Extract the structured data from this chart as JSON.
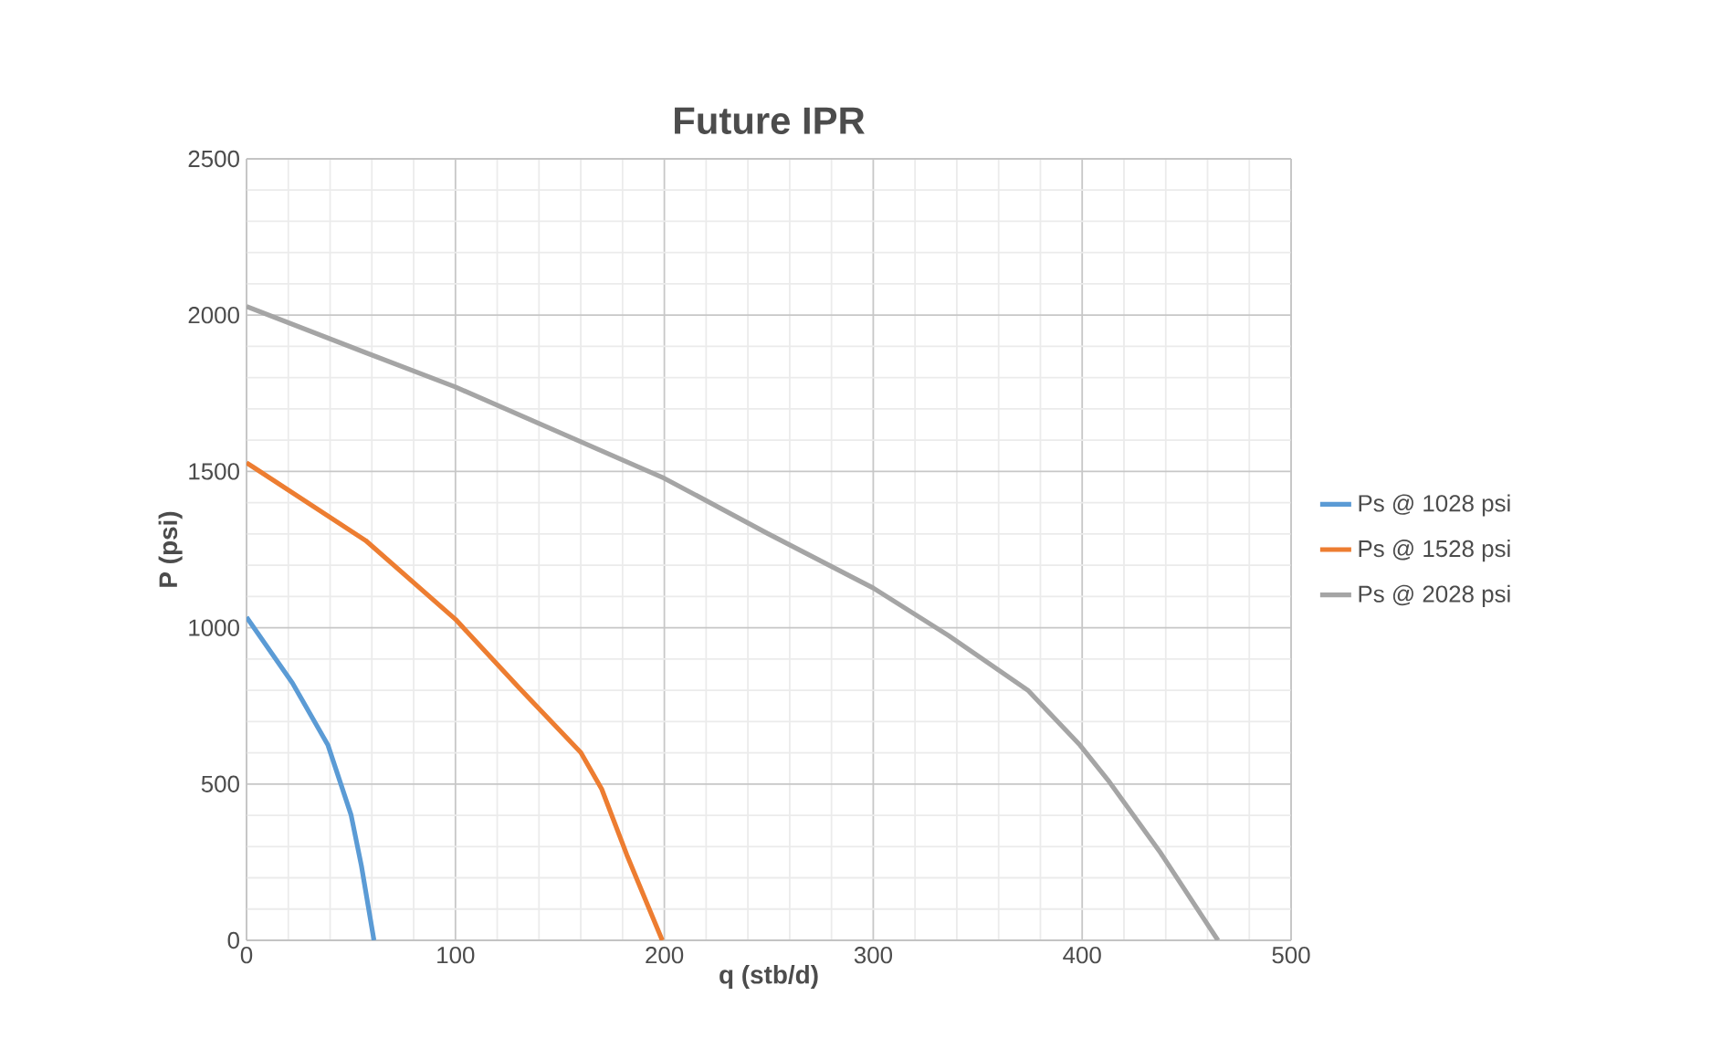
{
  "chart_data": {
    "type": "line",
    "title": "Future IPR",
    "xlabel": "q (stb/d)",
    "ylabel": "P (psi)",
    "xlim": [
      0,
      500
    ],
    "xticks": [
      0,
      100,
      200,
      300,
      400,
      500
    ],
    "ylim": [
      0,
      2500
    ],
    "yticks": [
      0,
      500,
      1000,
      1500,
      2000,
      2500
    ],
    "grid": true,
    "legend": "right",
    "marker": "none",
    "line_style": "solid",
    "series": [
      {
        "name": "Ps @ 1028 psi",
        "color": "#5b9bd5",
        "x": [
          0,
          22,
          39,
          50,
          55,
          61
        ],
        "values": [
          1034,
          823,
          624,
          402,
          238,
          0
        ]
      },
      {
        "name": "Ps @ 1528 psi",
        "color": "#ed7d31",
        "x": [
          0,
          57,
          100,
          130,
          160,
          170,
          182,
          199
        ],
        "values": [
          1528,
          1279,
          1027,
          811,
          601,
          484,
          274,
          0
        ]
      },
      {
        "name": "Ps @ 2028 psi",
        "color": "#a5a5a5",
        "x": [
          0,
          57,
          100,
          144,
          200,
          249,
          300,
          336,
          374,
          399,
          413,
          437,
          465
        ],
        "values": [
          2028,
          1880,
          1770,
          1642,
          1478,
          1303,
          1127,
          975,
          800,
          624,
          507,
          285,
          0
        ]
      }
    ]
  }
}
